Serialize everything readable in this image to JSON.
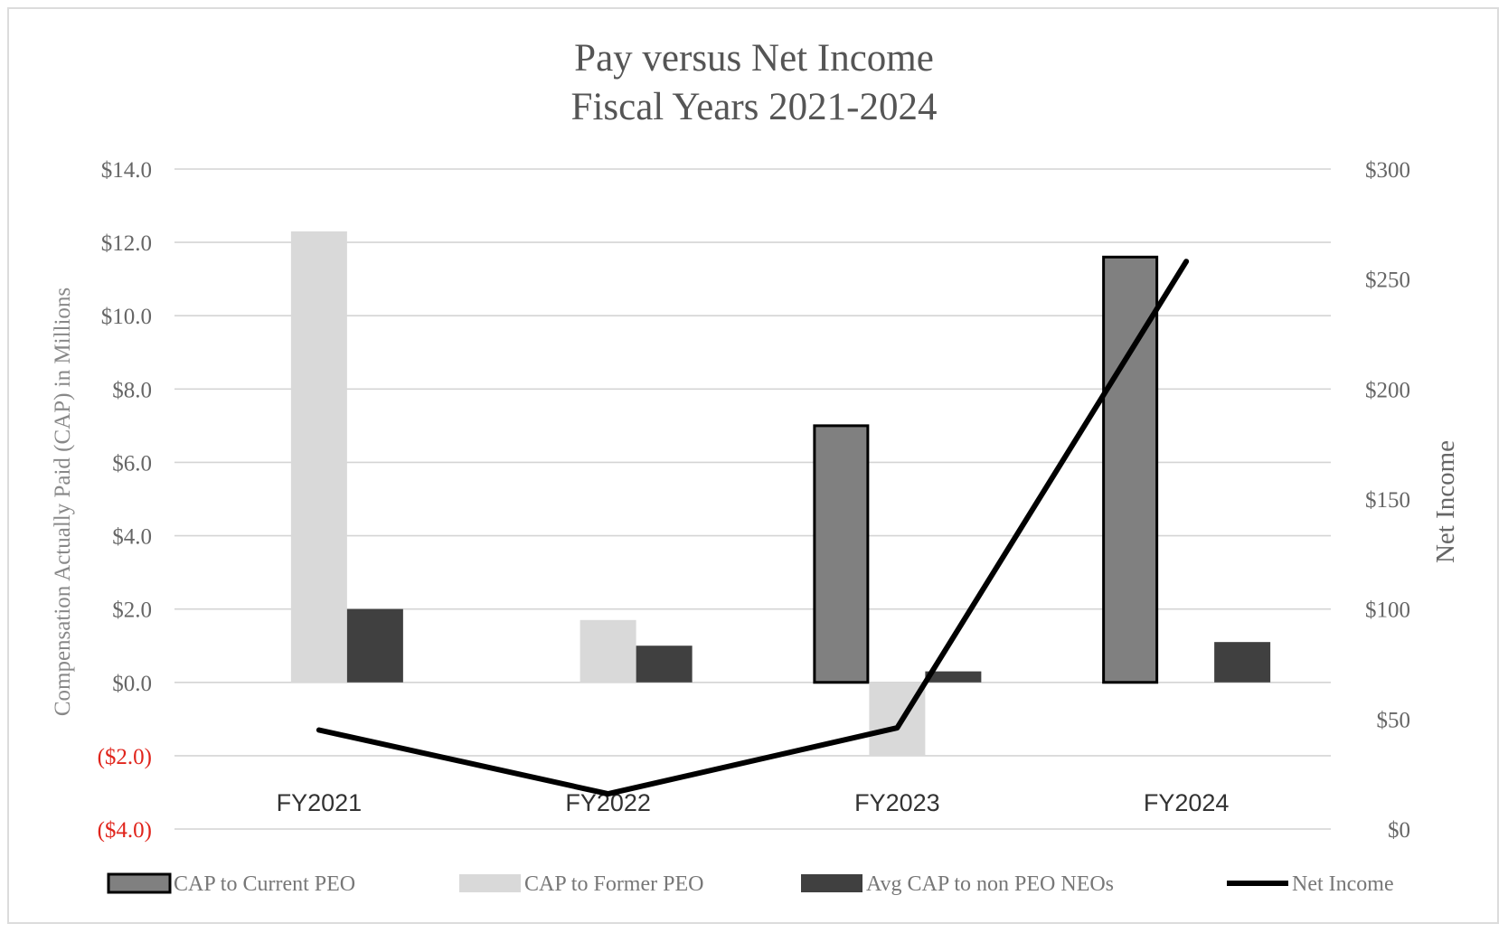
{
  "chart_data": {
    "type": "bar",
    "title": [
      "Pay versus Net Income",
      "Fiscal Years 2021-2024"
    ],
    "categories": [
      "FY2021",
      "FY2022",
      "FY2023",
      "FY2024"
    ],
    "ylabel": "Compensation Actually Paid (CAP) in Millions",
    "y2label": "Net Income",
    "ylim": [
      -4,
      14
    ],
    "y2lim": [
      0,
      300
    ],
    "yticks": [
      "$14.0",
      "$12.0",
      "$10.0",
      "$8.0",
      "$6.0",
      "$4.0",
      "$2.0",
      "$0.0",
      "($2.0)",
      "($4.0)"
    ],
    "y2ticks": [
      "$300",
      "$250",
      "$200",
      "$150",
      "$100",
      "$50",
      "$0"
    ],
    "grid": true,
    "legend_position": "bottom",
    "series": [
      {
        "name": "CAP to Current PEO",
        "type": "bar",
        "axis": "left",
        "color": "#808080",
        "values": [
          null,
          null,
          7.0,
          11.6
        ]
      },
      {
        "name": "CAP to Former PEO",
        "type": "bar",
        "axis": "left",
        "color": "#d9d9d9",
        "values": [
          12.3,
          1.7,
          -2.0,
          null
        ]
      },
      {
        "name": "Avg CAP to non PEO NEOs",
        "type": "bar",
        "axis": "left",
        "color": "#404040",
        "values": [
          2.0,
          1.0,
          0.3,
          1.1
        ]
      },
      {
        "name": "Net Income",
        "type": "line",
        "axis": "right",
        "color": "#000000",
        "values": [
          45,
          16,
          46,
          258
        ]
      }
    ]
  }
}
